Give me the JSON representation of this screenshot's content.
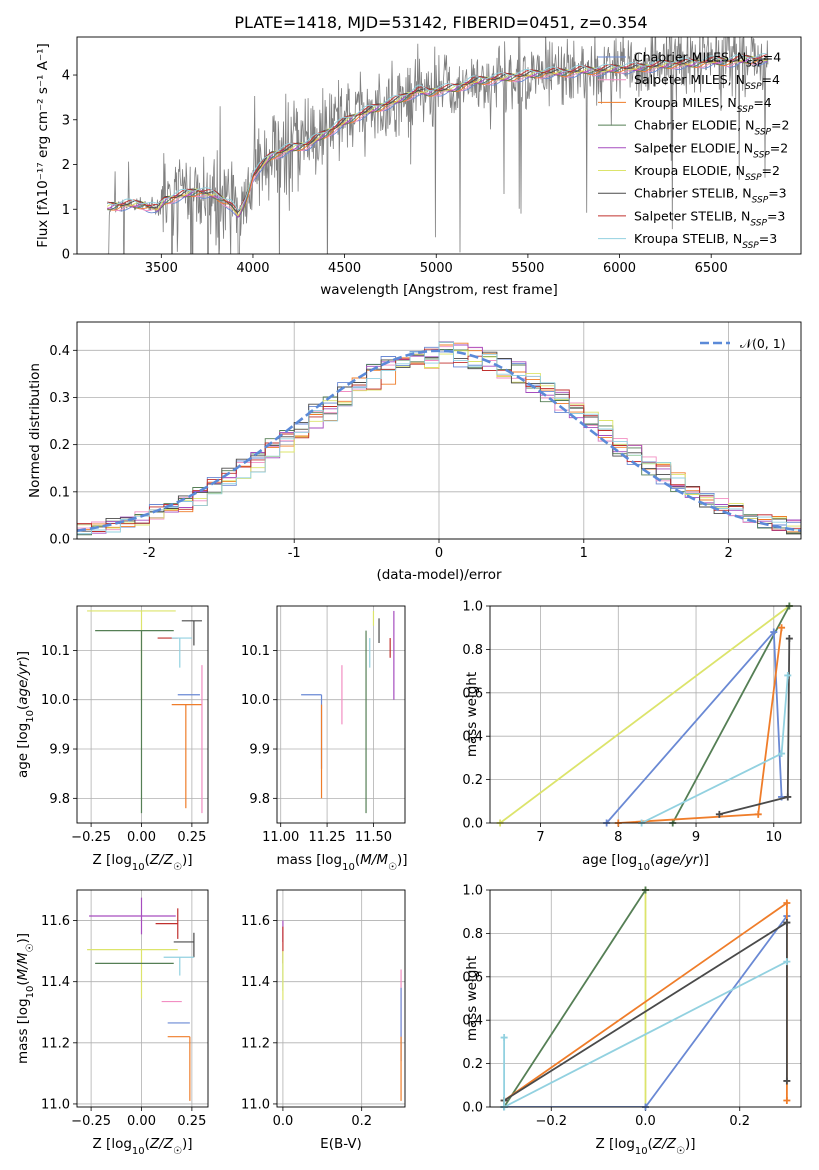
{
  "chart_data": [
    {
      "id": "spectrum",
      "type": "line",
      "title": "PLATE=1418, MJD=53142, FIBERID=0451, z=0.354",
      "xlabel": "wavelength [Angstrom, rest frame]",
      "ylabel": "Flux [fλ10⁻¹⁷ erg cm⁻² s⁻¹ A⁻¹]",
      "xlim": [
        3040,
        6990
      ],
      "ylim": [
        0,
        4.85
      ],
      "xticks": [
        3500,
        4000,
        4500,
        5000,
        5500,
        6000,
        6500
      ],
      "yticks": [
        0,
        1,
        2,
        3,
        4
      ],
      "grid": false,
      "legend_position": "upper right",
      "data_color": "#7f7f7f",
      "continuum_knots": {
        "x": [
          3200,
          3300,
          3400,
          3480,
          3520,
          3600,
          3700,
          3800,
          3880,
          3920,
          3960,
          4000,
          4100,
          4200,
          4300,
          4400,
          4500,
          4600,
          4700,
          4800,
          4850,
          4900,
          4960,
          5000,
          5100,
          5200,
          5300,
          5400,
          5500,
          5600,
          5700,
          5800,
          5900,
          6000,
          6100,
          6200,
          6300,
          6400,
          6500,
          6600,
          6700,
          6810
        ],
        "y": [
          1.05,
          1.1,
          1.1,
          1.0,
          1.2,
          1.3,
          1.4,
          1.3,
          1.1,
          0.85,
          1.2,
          1.75,
          2.2,
          2.35,
          2.45,
          2.7,
          2.95,
          3.15,
          3.3,
          3.45,
          3.55,
          3.65,
          3.6,
          3.65,
          3.7,
          3.85,
          3.9,
          3.95,
          4.0,
          4.05,
          4.05,
          4.1,
          4.1,
          4.15,
          4.15,
          4.2,
          4.25,
          4.25,
          4.3,
          4.3,
          4.35,
          4.35
        ]
      },
      "series": [
        {
          "name": "Chabrier MILES, N",
          "sub": "SSP",
          "suffix": "=4",
          "color": "#6a89d4"
        },
        {
          "name": "Salpeter MILES, N",
          "sub": "SSP",
          "suffix": "=4",
          "color": "#f28ec2"
        },
        {
          "name": "Kroupa MILES, N",
          "sub": "SSP",
          "suffix": "=4",
          "color": "#ef7d2a"
        },
        {
          "name": "Chabrier ELODIE, N",
          "sub": "SSP",
          "suffix": "=2",
          "color": "#557f55"
        },
        {
          "name": "Salpeter ELODIE, N",
          "sub": "SSP",
          "suffix": "=2",
          "color": "#a64dbf"
        },
        {
          "name": "Kroupa ELODIE, N",
          "sub": "SSP",
          "suffix": "=2",
          "color": "#dce46b"
        },
        {
          "name": "Chabrier STELIB, N",
          "sub": "SSP",
          "suffix": "=3",
          "color": "#4a4a4a"
        },
        {
          "name": "Salpeter STELIB, N",
          "sub": "SSP",
          "suffix": "=3",
          "color": "#c0302e"
        },
        {
          "name": "Kroupa STELIB, N",
          "sub": "SSP",
          "suffix": "=3",
          "color": "#92d1e0"
        }
      ]
    },
    {
      "id": "residuals",
      "type": "histogram",
      "xlabel": "(data-model)/error",
      "ylabel": "Normed distribution",
      "xlim": [
        -2.5,
        2.5
      ],
      "ylim": [
        0,
        0.46
      ],
      "xticks": [
        -2,
        -1,
        0,
        1,
        2
      ],
      "yticks": [
        0.0,
        0.1,
        0.2,
        0.3,
        0.4
      ],
      "ytick_labels": [
        "0.0",
        "0.1",
        "0.2",
        "0.3",
        "0.4"
      ],
      "grid": true,
      "bin_width": 0.1,
      "reference": {
        "label": "𝒩(0, 1)",
        "color": "#5b8ad8",
        "style": "dashed",
        "mean": 0,
        "sigma": 1
      },
      "legend_position": "upper right"
    },
    {
      "id": "age_vs_Z",
      "type": "errorbar",
      "xlabel": "Z [log10(Z/Z☉)]",
      "ylabel": "age  [log10(age/yr)]",
      "xlim": [
        -0.32,
        0.33
      ],
      "ylim": [
        9.75,
        10.19
      ],
      "xticks": [
        -0.25,
        0.0,
        0.25
      ],
      "xtick_labels": [
        "−0.25",
        "0.00",
        "0.25"
      ],
      "yticks": [
        9.8,
        9.9,
        10.0,
        10.1
      ],
      "ytick_labels": [
        "9.8",
        "9.9",
        "10.0",
        "10.1"
      ],
      "grid": true,
      "points": [
        {
          "series": "Kroupa ELODIE",
          "x": 0.0,
          "xerr": [
            0.27,
            0.17
          ],
          "y": 10.18,
          "yerr": [
            0.18,
            0.0
          ]
        },
        {
          "series": "Chabrier ELODIE",
          "x": 0.0,
          "xerr": [
            0.23,
            0.16
          ],
          "y": 10.14,
          "yerr": [
            0.37,
            0.0
          ]
        },
        {
          "series": "Salpeter STELIB",
          "x": 0.18,
          "xerr": [
            0.1,
            0.0
          ],
          "y": 10.125,
          "yerr": [
            0.0,
            0.0
          ]
        },
        {
          "series": "Chabrier STELIB",
          "x": 0.26,
          "xerr": [
            0.06,
            0.04
          ],
          "y": 10.16,
          "yerr": [
            0.05,
            0.0
          ]
        },
        {
          "series": "Kroupa STELIB",
          "x": 0.19,
          "xerr": [
            0.04,
            0.06
          ],
          "y": 10.125,
          "yerr": [
            0.06,
            0.0
          ]
        },
        {
          "series": "Chabrier MILES",
          "x": 0.22,
          "xerr": [
            0.04,
            0.07
          ],
          "y": 10.01,
          "yerr": [
            0.0,
            0.0
          ]
        },
        {
          "series": "Kroupa MILES",
          "x": 0.22,
          "xerr": [
            0.07,
            0.08
          ],
          "y": 9.99,
          "yerr": [
            0.21,
            0.0
          ]
        },
        {
          "series": "Salpeter MILES",
          "x": 0.3,
          "xerr": [
            0.0,
            0.0
          ],
          "y": 10.07,
          "yerr": [
            0.3,
            0.0
          ]
        }
      ]
    },
    {
      "id": "age_vs_mass",
      "type": "errorbar",
      "xlabel": "mass [log10(M/M☉)]",
      "xlim": [
        10.98,
        11.67
      ],
      "ylim": [
        9.75,
        10.19
      ],
      "xticks": [
        11.0,
        11.25,
        11.5
      ],
      "xtick_labels": [
        "11.00",
        "11.25",
        "11.50"
      ],
      "yticks": [
        9.8,
        9.9,
        10.0,
        10.1
      ],
      "ytick_labels": [
        "9.8",
        "9.9",
        "10.0",
        "10.1"
      ],
      "grid": true,
      "points": [
        {
          "series": "Kroupa ELODIE",
          "x": 11.5,
          "xerr": [
            0.0,
            0.0
          ],
          "y": 10.18,
          "yerr": [
            0.03,
            0.0
          ]
        },
        {
          "series": "Salpeter ELODIE",
          "x": 11.61,
          "xerr": [
            0.0,
            0.0
          ],
          "y": 10.18,
          "yerr": [
            0.18,
            0.0
          ]
        },
        {
          "series": "Chabrier ELODIE",
          "x": 11.46,
          "xerr": [
            0.0,
            0.0
          ],
          "y": 10.14,
          "yerr": [
            0.37,
            0.0
          ]
        },
        {
          "series": "Chabrier STELIB",
          "x": 11.53,
          "xerr": [
            0.0,
            0.0
          ],
          "y": 10.165,
          "yerr": [
            0.05,
            0.0
          ]
        },
        {
          "series": "Salpeter STELIB",
          "x": 11.59,
          "xerr": [
            0.0,
            0.0
          ],
          "y": 10.125,
          "yerr": [
            0.04,
            0.0
          ]
        },
        {
          "series": "Kroupa STELIB",
          "x": 11.48,
          "xerr": [
            0.0,
            0.0
          ],
          "y": 10.125,
          "yerr": [
            0.06,
            0.0
          ]
        },
        {
          "series": "Salpeter MILES",
          "x": 11.33,
          "xerr": [
            0.0,
            0.0
          ],
          "y": 10.07,
          "yerr": [
            0.12,
            0.0
          ]
        },
        {
          "series": "Chabrier MILES",
          "x": 11.22,
          "xerr": [
            0.11,
            0.0
          ],
          "y": 10.01,
          "yerr": [
            0.15,
            0.0
          ]
        },
        {
          "series": "Kroupa MILES",
          "x": 11.22,
          "xerr": [
            0.0,
            0.0
          ],
          "y": 9.99,
          "yerr": [
            0.19,
            0.0
          ]
        }
      ]
    },
    {
      "id": "weight_vs_age",
      "type": "line",
      "xlabel": "age  [log10(age/yr)]",
      "ylabel": "mass weight",
      "xlim": [
        6.35,
        10.35
      ],
      "ylim": [
        0,
        1.0
      ],
      "xticks": [
        7,
        8,
        9,
        10
      ],
      "yticks": [
        0.0,
        0.2,
        0.4,
        0.6,
        0.8,
        1.0
      ],
      "ytick_labels": [
        "0.0",
        "0.2",
        "0.4",
        "0.6",
        "0.8",
        "1.0"
      ],
      "grid": true,
      "series": [
        {
          "name": "Kroupa ELODIE",
          "x": [
            6.48,
            10.2
          ],
          "y": [
            0.0,
            1.0
          ],
          "color": "#dce46b"
        },
        {
          "name": "Chabrier ELODIE",
          "x": [
            8.7,
            10.2
          ],
          "y": [
            0.0,
            1.0
          ],
          "color": "#557f55"
        },
        {
          "name": "Chabrier MILES",
          "x": [
            7.85,
            10.0,
            10.1
          ],
          "y": [
            0.0,
            0.88,
            0.12
          ],
          "color": "#6a89d4"
        },
        {
          "name": "Kroupa MILES",
          "x": [
            8.0,
            9.8,
            10.1
          ],
          "y": [
            0.0,
            0.04,
            0.9
          ],
          "color": "#ef7d2a"
        },
        {
          "name": "Chabrier STELIB",
          "x": [
            9.3,
            10.18,
            10.2
          ],
          "y": [
            0.04,
            0.12,
            0.85
          ],
          "color": "#4a4a4a"
        },
        {
          "name": "Kroupa STELIB",
          "x": [
            8.3,
            10.1,
            10.18
          ],
          "y": [
            0.0,
            0.32,
            0.68
          ],
          "color": "#92d1e0"
        }
      ]
    },
    {
      "id": "mass_vs_Z",
      "type": "errorbar",
      "xlabel": "Z [log10(Z/Z☉)]",
      "ylabel": "mass [log10(M/M☉)]",
      "xlim": [
        -0.32,
        0.33
      ],
      "ylim": [
        10.99,
        11.7
      ],
      "xticks": [
        -0.25,
        0.0,
        0.25
      ],
      "xtick_labels": [
        "−0.25",
        "0.00",
        "0.25"
      ],
      "yticks": [
        11.0,
        11.2,
        11.4,
        11.6
      ],
      "ytick_labels": [
        "11.0",
        "11.2",
        "11.4",
        "11.6"
      ],
      "grid": true,
      "points": [
        {
          "series": "Salpeter ELODIE",
          "x": 0.0,
          "xerr": [
            0.26,
            0.17
          ],
          "y": 11.615,
          "yerr": [
            0.06,
            0.06
          ]
        },
        {
          "series": "Salpeter STELIB",
          "x": 0.18,
          "xerr": [
            0.11,
            0.0
          ],
          "y": 11.59,
          "yerr": [
            0.05,
            0.05
          ]
        },
        {
          "series": "Chabrier STELIB",
          "x": 0.26,
          "xerr": [
            0.1,
            0.0
          ],
          "y": 11.53,
          "yerr": [
            0.05,
            0.03
          ]
        },
        {
          "series": "Kroupa ELODIE",
          "x": 0.0,
          "xerr": [
            0.27,
            0.18
          ],
          "y": 11.505,
          "yerr": [
            0.16,
            0.0
          ]
        },
        {
          "series": "Kroupa STELIB",
          "x": 0.19,
          "xerr": [
            0.08,
            0.07
          ],
          "y": 11.48,
          "yerr": [
            0.06,
            0.0
          ]
        },
        {
          "series": "Chabrier ELODIE",
          "x": 0.0,
          "xerr": [
            0.23,
            0.16
          ],
          "y": 11.46,
          "yerr": [
            0.0,
            0.0
          ]
        },
        {
          "series": "Salpeter MILES",
          "x": 0.2,
          "xerr": [
            0.1,
            0.0
          ],
          "y": 11.335,
          "yerr": [
            0.0,
            0.0
          ]
        },
        {
          "series": "Chabrier MILES",
          "x": 0.24,
          "xerr": [
            0.11,
            0.0
          ],
          "y": 11.265,
          "yerr": [
            0.0,
            0.0
          ]
        },
        {
          "series": "Kroupa MILES",
          "x": 0.24,
          "xerr": [
            0.11,
            0.0
          ],
          "y": 11.22,
          "yerr": [
            0.21,
            0.0
          ]
        }
      ]
    },
    {
      "id": "mass_vs_ebv",
      "type": "errorbar",
      "xlabel": "E(B-V)",
      "xlim": [
        -0.015,
        0.31
      ],
      "ylim": [
        10.99,
        11.7
      ],
      "xticks": [
        0.0,
        0.2
      ],
      "xtick_labels": [
        "0.0",
        "0.2"
      ],
      "yticks": [
        11.0,
        11.2,
        11.4,
        11.6
      ],
      "ytick_labels": [
        "11.0",
        "11.2",
        "11.4",
        "11.6"
      ],
      "grid": true,
      "points": [
        {
          "series": "Salpeter ELODIE",
          "x": 0.0,
          "xerr": [
            0.0,
            0.0
          ],
          "y": 11.6,
          "yerr": [
            0.07,
            0.0
          ]
        },
        {
          "series": "Salpeter STELIB",
          "x": 0.0,
          "xerr": [
            0.0,
            0.0
          ],
          "y": 11.52,
          "yerr": [
            0.06,
            0.06
          ]
        },
        {
          "series": "Kroupa STELIB",
          "x": 0.0,
          "xerr": [
            0.0,
            0.0
          ],
          "y": 11.43,
          "yerr": [
            0.06,
            0.06
          ]
        },
        {
          "series": "Kroupa ELODIE",
          "x": 0.0,
          "xerr": [
            0.0,
            0.0
          ],
          "y": 11.42,
          "yerr": [
            0.08,
            0.08
          ]
        },
        {
          "series": "Salpeter MILES",
          "x": 0.3,
          "xerr": [
            0.0,
            0.0
          ],
          "y": 11.33,
          "yerr": [
            0.11,
            0.11
          ]
        },
        {
          "series": "Chabrier MILES",
          "x": 0.3,
          "xerr": [
            0.0,
            0.0
          ],
          "y": 11.26,
          "yerr": [
            0.12,
            0.12
          ]
        },
        {
          "series": "Kroupa MILES",
          "x": 0.3,
          "xerr": [
            0.0,
            0.0
          ],
          "y": 11.22,
          "yerr": [
            0.21,
            0.0
          ]
        }
      ]
    },
    {
      "id": "weight_vs_Z",
      "type": "line",
      "xlabel": "Z [log10(Z/Z☉)]",
      "ylabel": "mass weight",
      "xlim": [
        -0.33,
        0.33
      ],
      "ylim": [
        0,
        1.0
      ],
      "xticks": [
        -0.2,
        0.0,
        0.2
      ],
      "xtick_labels": [
        "−0.2",
        "0.0",
        "0.2"
      ],
      "yticks": [
        0.0,
        0.2,
        0.4,
        0.6,
        0.8,
        1.0
      ],
      "ytick_labels": [
        "0.0",
        "0.2",
        "0.4",
        "0.6",
        "0.8",
        "1.0"
      ],
      "grid": true,
      "series": [
        {
          "name": "Kroupa ELODIE",
          "x": [
            0.0,
            0.0
          ],
          "y": [
            0.0,
            1.0
          ],
          "color": "#dce46b"
        },
        {
          "name": "Chabrier ELODIE",
          "x": [
            -0.3,
            0.0
          ],
          "y": [
            0.0,
            1.0
          ],
          "color": "#557f55"
        },
        {
          "name": "Chabrier MILES",
          "x": [
            -0.3,
            0.0,
            0.3
          ],
          "y": [
            0.0,
            0.0,
            0.88
          ],
          "color": "#6a89d4"
        },
        {
          "name": "Kroupa MILES",
          "x": [
            -0.3,
            0.3,
            0.3
          ],
          "y": [
            0.03,
            0.94,
            0.03
          ],
          "color": "#ef7d2a"
        },
        {
          "name": "Chabrier STELIB",
          "x": [
            -0.3,
            0.3,
            0.3
          ],
          "y": [
            0.03,
            0.85,
            0.12
          ],
          "color": "#4a4a4a"
        },
        {
          "name": "Kroupa STELIB",
          "x": [
            -0.3,
            -0.3,
            0.3
          ],
          "y": [
            0.32,
            0.0,
            0.67
          ],
          "color": "#92d1e0"
        }
      ]
    }
  ]
}
